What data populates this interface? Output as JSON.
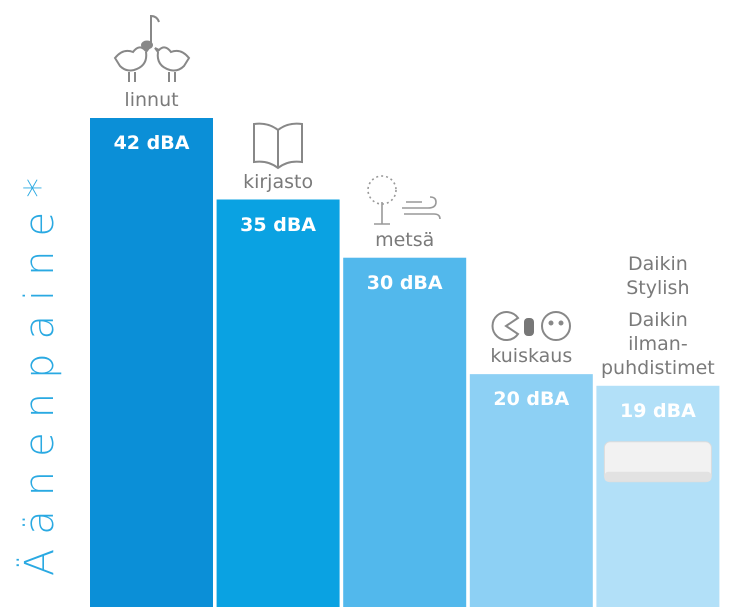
{
  "chart_data": {
    "type": "bar",
    "y_label": "Äänenpaine*",
    "categories": [
      "linnut",
      "kirjasto",
      "metsä",
      "kuiskaus",
      "Daikin Stylish"
    ],
    "annotations": [
      null,
      null,
      null,
      null,
      "Daikin ilman-puhdistimet"
    ],
    "values": [
      42,
      35,
      30,
      20,
      19
    ],
    "value_labels": [
      "42 dBA",
      "35 dBA",
      "30 dBA",
      "20 dBA",
      "19 dBA"
    ],
    "colors": [
      "#0b8fd7",
      "#0aa2e2",
      "#52b8ec",
      "#8dd0f4",
      "#b2e0f8"
    ]
  }
}
